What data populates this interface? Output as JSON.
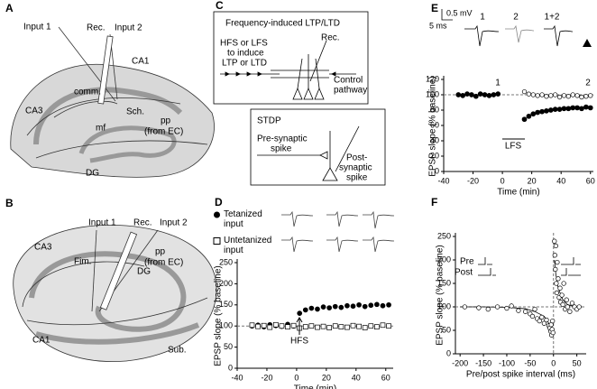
{
  "panel_a": {
    "label": "A",
    "input_1": "Input 1",
    "rec": "Rec.",
    "input_2": "Input 2",
    "ca1": "CA1",
    "comm": "comm.",
    "ca3": "CA3",
    "sch": "Sch.",
    "mf": "mf",
    "pp": [
      "pp",
      "(from EC)"
    ],
    "dg": "DG"
  },
  "panel_b": {
    "label": "B",
    "input_1": "Input 1",
    "rec": "Rec.",
    "input_2": "Input 2",
    "ca3": "CA3",
    "fim": "Fim.",
    "pp": [
      "pp",
      "(from EC)"
    ],
    "dg": "DG",
    "ca1": "CA1",
    "sub": "Sub."
  },
  "panel_c": {
    "label": "C",
    "box1_title": "Frequency-induced LTP/LTD",
    "stim": [
      "HFS or LFS",
      "to induce",
      "LTP or LTD"
    ],
    "rec": "Rec.",
    "control": [
      "Control",
      "pathway"
    ],
    "box2_title": "STDP",
    "pre": [
      "Pre-synaptic",
      "spike"
    ],
    "post": [
      "Post-",
      "synaptic",
      "spike"
    ]
  },
  "chart_data": [
    {
      "panel": "D",
      "type": "scatter",
      "xlabel": "Time (min)",
      "ylabel": "EPSP slope (% baseline)",
      "xlim": [
        -40,
        65
      ],
      "xticks": [
        -40,
        -20,
        0,
        20,
        40,
        60
      ],
      "ylim": [
        0,
        250
      ],
      "yticks": [
        0,
        50,
        100,
        150,
        200,
        250
      ],
      "hline": 100,
      "annotation": "HFS",
      "legend": "upper left",
      "series": [
        {
          "name": "Tetanized input",
          "marker": "filled-circle",
          "color": "#000000",
          "x": [
            -30,
            -26,
            -22,
            -18,
            -14,
            -10,
            -6,
            -2,
            2,
            6,
            10,
            14,
            18,
            22,
            26,
            30,
            34,
            38,
            42,
            46,
            50,
            54,
            58,
            62
          ],
          "values": [
            100,
            102,
            98,
            103,
            101,
            99,
            104,
            100,
            130,
            138,
            142,
            140,
            145,
            143,
            146,
            144,
            148,
            147,
            150,
            146,
            149,
            151,
            148,
            150
          ]
        },
        {
          "name": "Untetanized input",
          "marker": "open-square",
          "color": "#000000",
          "x": [
            -30,
            -26,
            -22,
            -18,
            -14,
            -10,
            -6,
            -2,
            2,
            6,
            10,
            14,
            18,
            22,
            26,
            30,
            34,
            38,
            42,
            46,
            50,
            54,
            58,
            62
          ],
          "values": [
            102,
            99,
            101,
            97,
            103,
            100,
            98,
            101,
            95,
            98,
            100,
            97,
            99,
            96,
            100,
            98,
            97,
            101,
            99,
            96,
            100,
            98,
            102,
            100
          ]
        }
      ]
    },
    {
      "panel": "E",
      "type": "scatter",
      "xlabel": "Time (min)",
      "ylabel": "EPSP slope (% baseline)",
      "xlim": [
        -40,
        62
      ],
      "xticks": [
        -40,
        -20,
        0,
        20,
        40,
        60
      ],
      "ylim": [
        0,
        120
      ],
      "yticks": [
        0,
        20,
        40,
        60,
        80,
        100,
        120
      ],
      "hline": 100,
      "annotation": "LFS",
      "trace_labels": [
        "1",
        "2",
        "1+2"
      ],
      "scale_bar": [
        "0.5 mV",
        "5 ms"
      ],
      "series": [
        {
          "name": "1",
          "marker": "filled-circle",
          "color": "#000000",
          "x": [
            -30,
            -27,
            -24,
            -21,
            -18,
            -15,
            -12,
            -9,
            -6,
            -3,
            15,
            18,
            21,
            24,
            27,
            30,
            33,
            36,
            39,
            42,
            45,
            48,
            51,
            54,
            57,
            60
          ],
          "values": [
            100,
            99,
            101,
            100,
            98,
            101,
            100,
            99,
            100,
            101,
            68,
            72,
            75,
            77,
            78,
            79,
            80,
            81,
            81,
            82,
            82,
            83,
            83,
            82,
            84,
            83
          ]
        },
        {
          "name": "2",
          "marker": "open-circle",
          "color": "#000000",
          "x": [
            15,
            18,
            21,
            24,
            27,
            30,
            33,
            36,
            39,
            42,
            45,
            48,
            51,
            54,
            57,
            60
          ],
          "values": [
            104,
            101,
            100,
            99,
            100,
            98,
            99,
            100,
            97,
            99,
            98,
            100,
            99,
            97,
            98,
            99
          ]
        }
      ]
    },
    {
      "panel": "F",
      "type": "scatter",
      "xlabel": "Pre/post spike interval (ms)",
      "ylabel": "EPSP slope (% baseline)",
      "xlim": [
        -210,
        70
      ],
      "xticks": [
        -200,
        -150,
        -100,
        -50,
        0,
        50
      ],
      "ylim": [
        0,
        250
      ],
      "yticks": [
        0,
        50,
        100,
        150,
        200,
        250
      ],
      "hline": 100,
      "vline": 0,
      "pre": "Pre",
      "post": "Post",
      "series": [
        {
          "marker": "open-circle",
          "color": "#000000",
          "x": [
            -190,
            -160,
            -140,
            -120,
            -100,
            -90,
            -75,
            -60,
            -50,
            -45,
            -40,
            -35,
            -30,
            -25,
            -20,
            -15,
            -10,
            -8,
            -6,
            -5,
            -4,
            -3,
            -2,
            -1,
            2,
            3,
            4,
            5,
            6,
            7,
            8,
            10,
            12,
            14,
            15,
            18,
            20,
            22,
            25,
            28,
            30,
            35,
            40,
            45,
            50,
            55
          ],
          "values": [
            100,
            98,
            95,
            100,
            97,
            102,
            92,
            90,
            85,
            80,
            95,
            75,
            70,
            78,
            65,
            72,
            60,
            55,
            48,
            62,
            40,
            52,
            70,
            45,
            240,
            210,
            180,
            230,
            150,
            130,
            195,
            160,
            120,
            140,
            110,
            125,
            105,
            150,
            95,
            115,
            100,
            90,
            108,
            100,
            95,
            100
          ]
        }
      ],
      "fit": {
        "x": [
          -200,
          -150,
          -100,
          -60,
          -40,
          -20,
          -10,
          -3,
          0,
          2,
          5,
          10,
          20,
          30,
          45,
          60
        ],
        "values": [
          100,
          100,
          99,
          96,
          90,
          80,
          65,
          50,
          null,
          200,
          170,
          140,
          115,
          105,
          100,
          100
        ]
      }
    }
  ]
}
